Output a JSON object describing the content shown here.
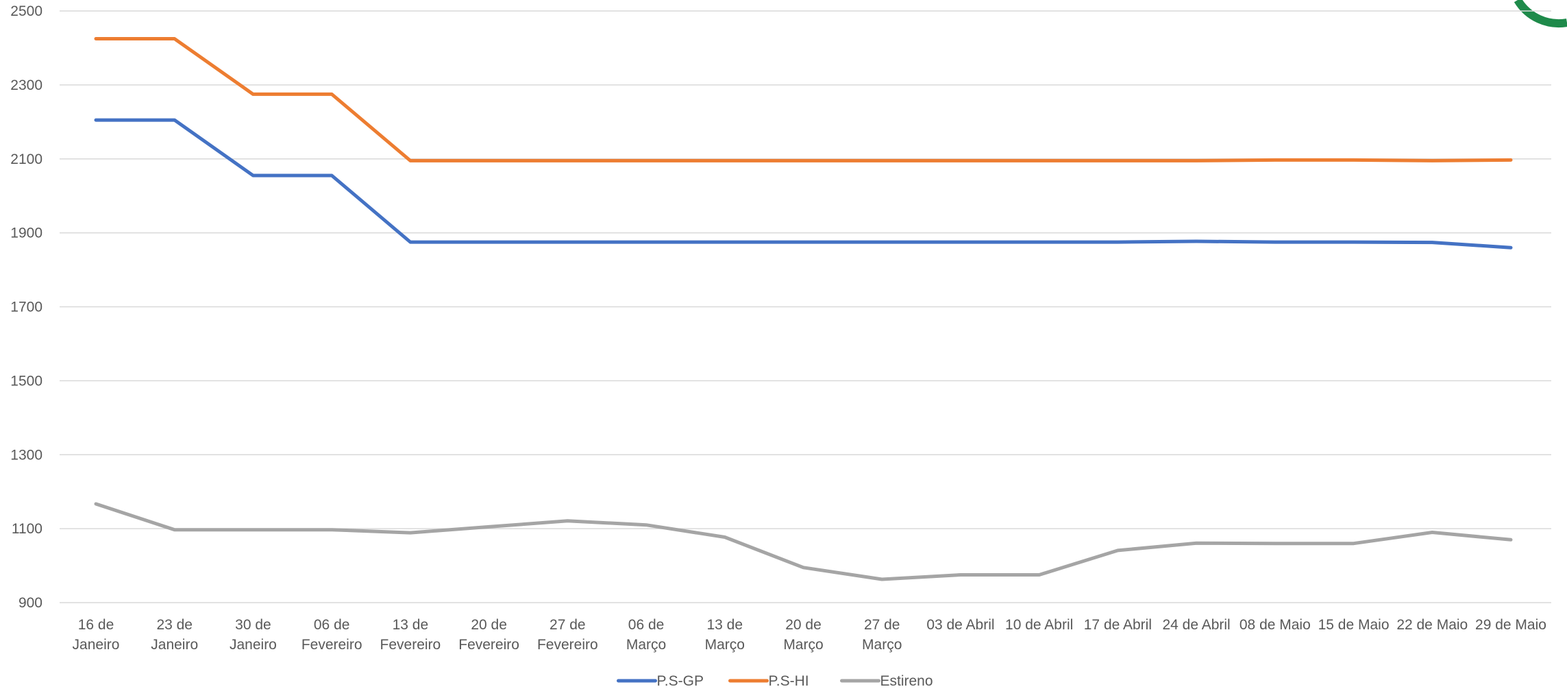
{
  "chart_data": {
    "type": "line",
    "title": "",
    "xlabel": "",
    "ylabel": "",
    "ylim": [
      900,
      2500
    ],
    "yticks": [
      900,
      1100,
      1300,
      1500,
      1700,
      1900,
      2100,
      2300,
      2500
    ],
    "grid": true,
    "legend_position": "bottom",
    "categories": [
      [
        "16 de",
        "Janeiro"
      ],
      [
        "23 de",
        "Janeiro"
      ],
      [
        "30 de",
        "Janeiro"
      ],
      [
        "06 de",
        "Fevereiro"
      ],
      [
        "13 de",
        "Fevereiro"
      ],
      [
        "20 de",
        "Fevereiro"
      ],
      [
        "27 de",
        "Fevereiro"
      ],
      [
        "06 de",
        "Março"
      ],
      [
        "13 de",
        "Março"
      ],
      [
        "20 de",
        "Março"
      ],
      [
        "27 de",
        "Março"
      ],
      [
        "03 de Abril"
      ],
      [
        "10 de Abril"
      ],
      [
        "17 de Abril"
      ],
      [
        "24 de Abril"
      ],
      [
        "08 de Maio"
      ],
      [
        "15 de Maio"
      ],
      [
        "22 de Maio"
      ],
      [
        "29 de Maio"
      ]
    ],
    "series": [
      {
        "name": "P.S-GP",
        "color": "#4472C4",
        "values": [
          2205,
          2205,
          2055,
          2055,
          1875,
          1875,
          1875,
          1875,
          1875,
          1875,
          1875,
          1875,
          1875,
          1875,
          1877,
          1875,
          1875,
          1874,
          1860
        ]
      },
      {
        "name": "P.S-HI",
        "color": "#ED7D31",
        "values": [
          2425,
          2425,
          2275,
          2275,
          2095,
          2095,
          2095,
          2095,
          2095,
          2095,
          2095,
          2095,
          2095,
          2095,
          2095,
          2097,
          2097,
          2095,
          2097
        ]
      },
      {
        "name": "Estireno",
        "color": "#A5A5A5",
        "values": [
          1167,
          1097,
          1097,
          1097,
          1089,
          1105,
          1121,
          1110,
          1077,
          995,
          963,
          975,
          975,
          1041,
          1061,
          1060,
          1060,
          1090,
          1070
        ]
      }
    ]
  },
  "decoration": {
    "logo_arc_color": "#1E8A4A",
    "gridline_color": "#D9D9D9",
    "text_color": "#595959"
  }
}
